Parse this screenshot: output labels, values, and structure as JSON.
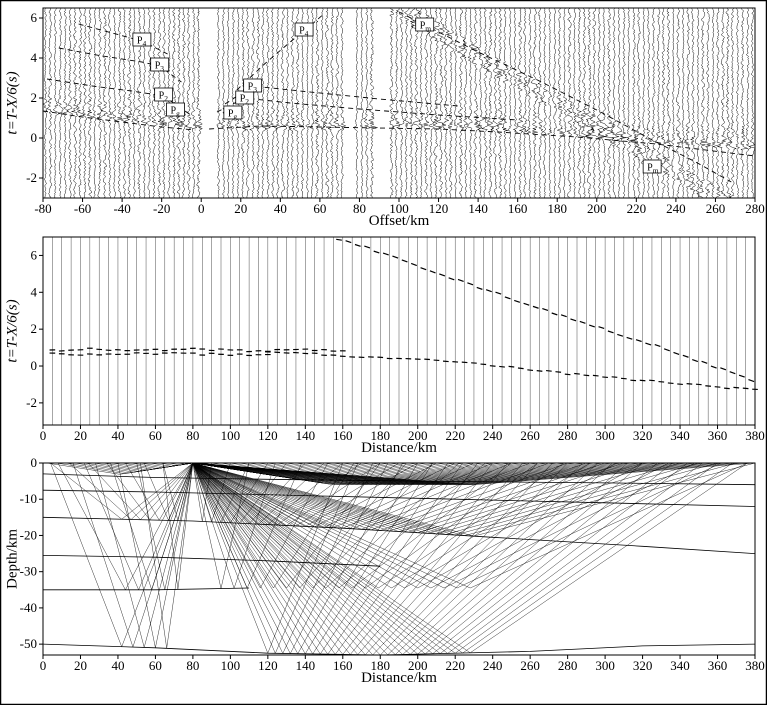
{
  "colors": {
    "ink": "#000000",
    "background": "#ffffff"
  },
  "chart_data": [
    {
      "id": "record-section",
      "type": "scatter",
      "xlabel": "Offset/km",
      "ylabel": "t=T-X/6(s)",
      "xlim": [
        -80,
        280
      ],
      "ylim": [
        -3,
        6.5
      ],
      "xticks": [
        -80,
        -60,
        -40,
        -20,
        0,
        20,
        40,
        60,
        80,
        100,
        120,
        140,
        160,
        180,
        200,
        220,
        240,
        260,
        280
      ],
      "yticks": [
        -2,
        0,
        2,
        4,
        6
      ],
      "trace_step_km": 2.5,
      "gap_ranges": [
        [
          -1,
          7
        ],
        [
          72,
          78
        ],
        [
          88,
          94
        ]
      ],
      "first_arrival": {
        "t0": 0.45,
        "left_slope": 0.011,
        "right_slope": 0.0008,
        "pn_start_km": 130,
        "pn_slope": 0.0075
      },
      "pm_packet": {
        "x0": 113,
        "t0": 5.65,
        "slope": -0.058
      },
      "phase_labels": [
        {
          "text": "P4",
          "x": -30,
          "y": 4.9
        },
        {
          "text": "P3",
          "x": -21,
          "y": 3.65
        },
        {
          "text": "P2",
          "x": -19,
          "y": 2.15
        },
        {
          "text": "Pg",
          "x": -13,
          "y": 1.4
        },
        {
          "text": "Pg",
          "x": 16,
          "y": 1.25
        },
        {
          "text": "P2",
          "x": 22,
          "y": 2.0
        },
        {
          "text": "P3",
          "x": 26,
          "y": 2.6
        },
        {
          "text": "P4",
          "x": 52,
          "y": 5.4
        },
        {
          "text": "Pm",
          "x": 113,
          "y": 5.65
        },
        {
          "text": "Pm",
          "x": 228,
          "y": -1.45
        }
      ],
      "picked_curves": [
        {
          "name": "Pg-left",
          "points": [
            [
              -80,
              1.35
            ],
            [
              -60,
              1.05
            ],
            [
              -40,
              0.8
            ],
            [
              -20,
              0.55
            ],
            [
              -3,
              0.4
            ]
          ]
        },
        {
          "name": "P2-left",
          "points": [
            [
              -78,
              2.95
            ],
            [
              -55,
              2.6
            ],
            [
              -35,
              2.35
            ],
            [
              -19,
              2.1
            ],
            [
              -6,
              1.2
            ]
          ]
        },
        {
          "name": "P3-left",
          "points": [
            [
              -72,
              4.5
            ],
            [
              -50,
              4.1
            ],
            [
              -30,
              3.8
            ],
            [
              -21,
              3.6
            ],
            [
              -10,
              2.8
            ]
          ]
        },
        {
          "name": "P4-left",
          "points": [
            [
              -62,
              5.7
            ],
            [
              -45,
              5.25
            ],
            [
              -30,
              4.85
            ],
            [
              -17,
              4.2
            ]
          ]
        },
        {
          "name": "Pg-Pn-right",
          "points": [
            [
              4,
              0.45
            ],
            [
              30,
              0.6
            ],
            [
              60,
              0.55
            ],
            [
              90,
              0.5
            ],
            [
              120,
              0.45
            ],
            [
              150,
              0.3
            ],
            [
              190,
              0.05
            ],
            [
              230,
              -0.3
            ],
            [
              280,
              -0.9
            ]
          ]
        },
        {
          "name": "P2-right",
          "points": [
            [
              8,
              1.3
            ],
            [
              22,
              2.0
            ],
            [
              45,
              1.75
            ],
            [
              80,
              1.45
            ],
            [
              120,
              1.15
            ],
            [
              160,
              0.9
            ]
          ]
        },
        {
          "name": "P3-right",
          "points": [
            [
              12,
              1.7
            ],
            [
              26,
              2.6
            ],
            [
              50,
              2.35
            ],
            [
              90,
              1.95
            ],
            [
              130,
              1.6
            ]
          ]
        },
        {
          "name": "P4-right",
          "points": [
            [
              18,
              2.4
            ],
            [
              32,
              3.7
            ],
            [
              45,
              4.8
            ],
            [
              55,
              5.6
            ],
            [
              62,
              6.2
            ]
          ]
        },
        {
          "name": "Pm",
          "points": [
            [
              100,
              6.3
            ],
            [
              113,
              5.65
            ],
            [
              140,
              4.3
            ],
            [
              170,
              2.9
            ],
            [
              200,
              1.4
            ],
            [
              228,
              -0.1
            ],
            [
              250,
              -1.2
            ],
            [
              268,
              -2.2
            ]
          ]
        }
      ]
    },
    {
      "id": "travel-time",
      "type": "line",
      "xlabel": "Distance/km",
      "ylabel": "t=T-X/6(s)",
      "xlim": [
        0,
        380
      ],
      "ylim": [
        -3.2,
        7
      ],
      "xticks": [
        0,
        20,
        40,
        60,
        80,
        100,
        120,
        140,
        160,
        180,
        200,
        220,
        240,
        260,
        280,
        300,
        320,
        340,
        360,
        380
      ],
      "yticks": [
        -2,
        0,
        2,
        4,
        6
      ],
      "grid_step_km": 5,
      "branches": [
        {
          "name": "crustal-upper",
          "points": [
            [
              5,
              0.85
            ],
            [
              25,
              0.95
            ],
            [
              45,
              0.82
            ],
            [
              65,
              0.88
            ],
            [
              85,
              0.92
            ],
            [
              105,
              0.82
            ],
            [
              125,
              0.86
            ],
            [
              145,
              0.9
            ],
            [
              160,
              0.85
            ]
          ]
        },
        {
          "name": "crustal-lower",
          "points": [
            [
              5,
              0.68
            ],
            [
              30,
              0.62
            ],
            [
              60,
              0.68
            ],
            [
              90,
              0.63
            ],
            [
              120,
              0.58
            ]
          ]
        },
        {
          "name": "Pn",
          "points": [
            [
              120,
              0.8
            ],
            [
              150,
              0.62
            ],
            [
              180,
              0.45
            ],
            [
              210,
              0.28
            ],
            [
              240,
              0.05
            ],
            [
              270,
              -0.3
            ],
            [
              300,
              -0.6
            ],
            [
              340,
              -0.95
            ],
            [
              380,
              -1.3
            ]
          ]
        },
        {
          "name": "PmP",
          "points": [
            [
              158,
              6.9
            ],
            [
              185,
              6.0
            ],
            [
              212,
              5.0
            ],
            [
              240,
              4.0
            ],
            [
              268,
              3.05
            ],
            [
              296,
              2.1
            ],
            [
              324,
              1.2
            ],
            [
              352,
              0.2
            ],
            [
              380,
              -0.8
            ]
          ]
        }
      ]
    },
    {
      "id": "ray-diagram",
      "type": "line",
      "xlabel": "Distance/km",
      "ylabel": "Depth/km",
      "xlim": [
        0,
        380
      ],
      "ylim": [
        -53,
        0
      ],
      "xticks": [
        0,
        20,
        40,
        60,
        80,
        100,
        120,
        140,
        160,
        180,
        200,
        220,
        240,
        260,
        280,
        300,
        320,
        340,
        360,
        380
      ],
      "yticks": [
        0,
        -10,
        -20,
        -30,
        -40,
        -50
      ],
      "source_x": 80,
      "interfaces": [
        [
          [
            0,
            -3
          ],
          [
            60,
            -4
          ],
          [
            120,
            -4.5
          ],
          [
            200,
            -5
          ],
          [
            300,
            -5.5
          ],
          [
            380,
            -6
          ]
        ],
        [
          [
            0,
            -7.5
          ],
          [
            60,
            -8
          ],
          [
            140,
            -9
          ],
          [
            220,
            -10
          ],
          [
            300,
            -11
          ],
          [
            380,
            -12
          ]
        ],
        [
          [
            0,
            -15
          ],
          [
            80,
            -16
          ],
          [
            160,
            -18
          ],
          [
            240,
            -20.5
          ],
          [
            320,
            -23
          ],
          [
            380,
            -25
          ]
        ],
        [
          [
            0,
            -25.5
          ],
          [
            60,
            -26
          ],
          [
            120,
            -27
          ],
          [
            180,
            -28.5
          ]
        ],
        [
          [
            0,
            -35
          ],
          [
            60,
            -35
          ],
          [
            110,
            -34.5
          ]
        ],
        [
          [
            0,
            -50
          ],
          [
            60,
            -51
          ],
          [
            120,
            -52.5
          ],
          [
            180,
            -53
          ],
          [
            260,
            -52
          ],
          [
            320,
            -50.5
          ],
          [
            380,
            -50
          ]
        ]
      ],
      "ray_families": [
        {
          "name": "shallow-right",
          "emerge": [
            85,
            380,
            5
          ],
          "depth_per_km": 0.04,
          "max_depth": 6
        },
        {
          "name": "shallow-left",
          "emerge": [
            2,
            77,
            5
          ],
          "depth_per_km": 0.04,
          "max_depth": 6
        },
        {
          "name": "midcrust-right",
          "emerge": [
            90,
            380,
            10
          ],
          "interface": 2
        },
        {
          "name": "midcrust-left",
          "emerge": [
            4,
            72,
            10
          ],
          "interface": 2
        },
        {
          "name": "lowercrust-right",
          "emerge": [
            110,
            380,
            14
          ],
          "interface": 4
        },
        {
          "name": "lowercrust-left",
          "emerge": [
            8,
            64,
            14
          ],
          "interface": 4
        },
        {
          "name": "moho-right",
          "emerge": [
            160,
            380,
            8
          ],
          "interface": 5
        },
        {
          "name": "moho-left",
          "emerge": [
            4,
            52,
            12
          ],
          "interface": 5
        }
      ]
    }
  ]
}
